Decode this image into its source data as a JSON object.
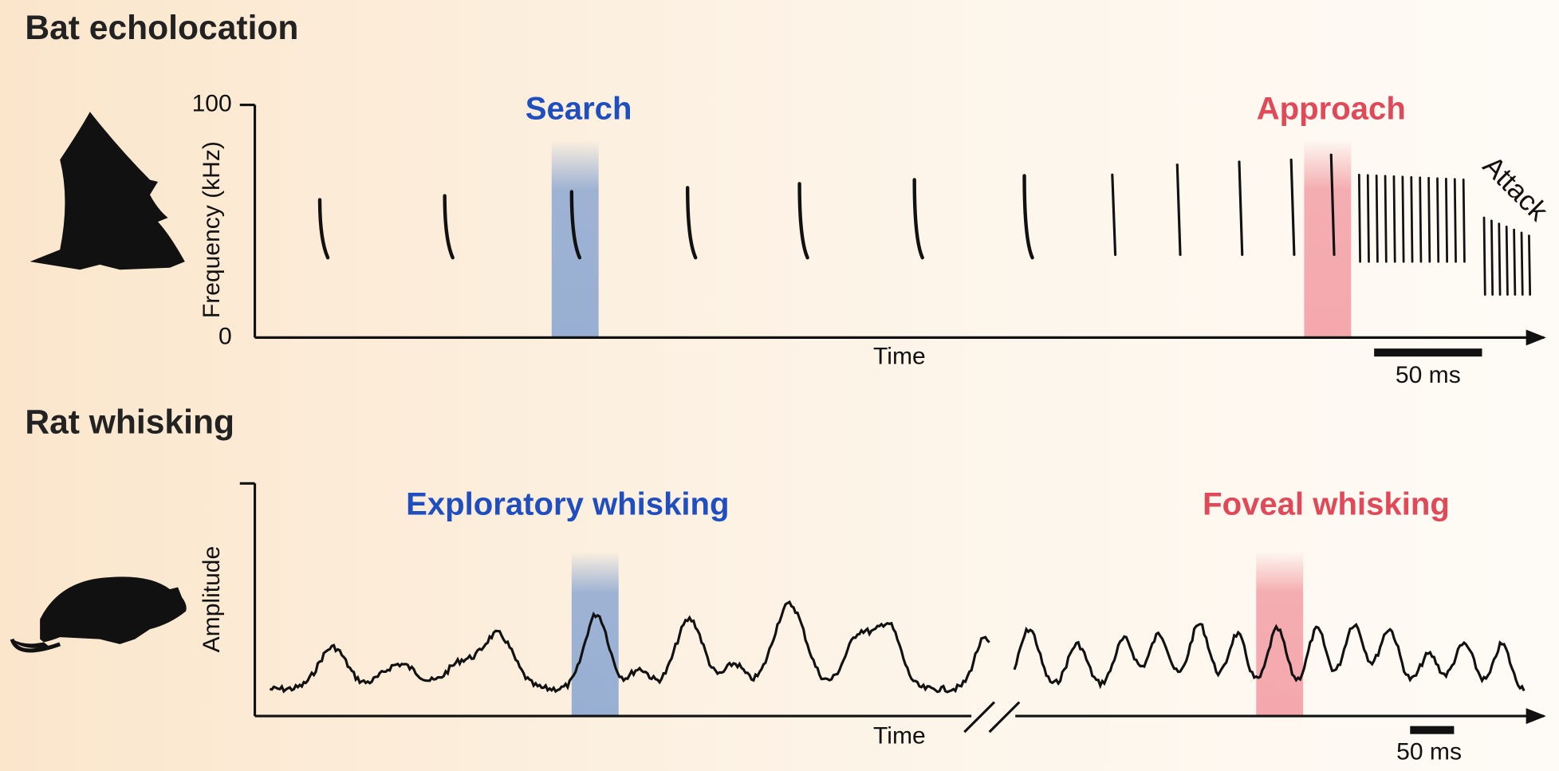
{
  "panels": [
    {
      "title": "Bat echolocation",
      "y_axis_label": "Frequency (kHz)",
      "y_ticks": [
        100,
        0
      ],
      "x_axis_label": "Time",
      "scale_bar": "50 ms",
      "phases": [
        "Search",
        "Approach",
        "Attack"
      ]
    },
    {
      "title": "Rat whisking",
      "y_axis_label": "Amplitude",
      "x_axis_label": "Time",
      "scale_bar": "50 ms",
      "phases": [
        "Exploratory whisking",
        "Foveal whisking"
      ]
    }
  ]
}
